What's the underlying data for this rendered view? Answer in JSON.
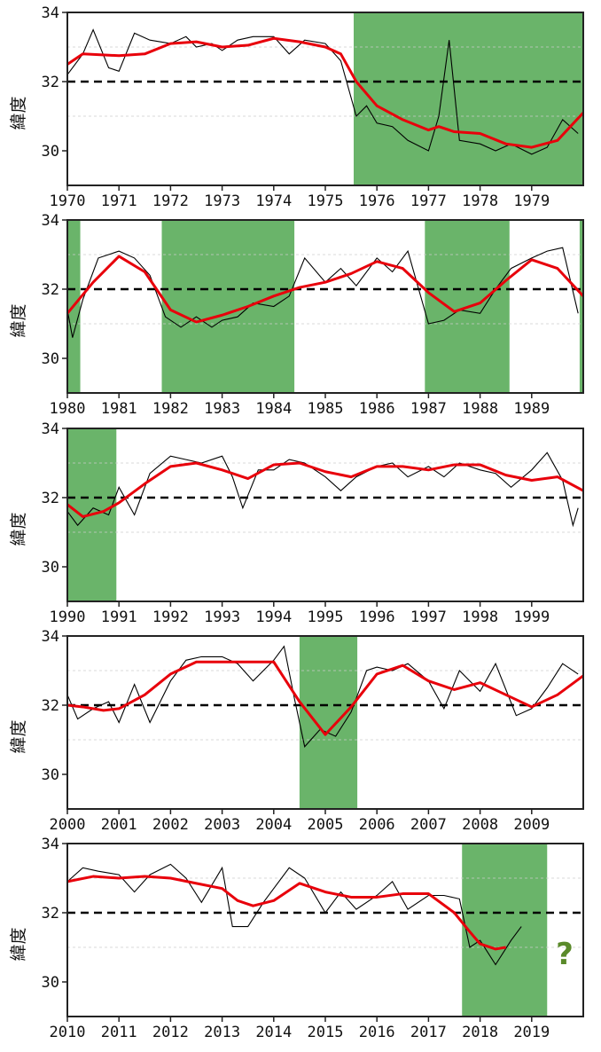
{
  "colors": {
    "shade": "#6ab46a",
    "smooth": "#e8000b",
    "raw": "#000000",
    "threshold": "#000000",
    "question": "#5a8a2a",
    "grid": "#cccccc"
  },
  "chart_data": [
    {
      "type": "line",
      "ylabel": "緯度",
      "ylim": [
        29,
        34
      ],
      "xlim": [
        1970,
        1980
      ],
      "yticks": [
        "34",
        "32",
        "30"
      ],
      "threshold": 32,
      "xtick_labels": [
        "1970",
        "1971",
        "1972",
        "1973",
        "1974",
        "1975",
        "1976",
        "1977",
        "1978",
        "1979"
      ],
      "shaded": [
        [
          1975.55,
          1980
        ]
      ],
      "smooth": {
        "x": [
          1970,
          1970.3,
          1971,
          1971.5,
          1972,
          1972.5,
          1973,
          1973.5,
          1974,
          1974.5,
          1975,
          1975.3,
          1975.6,
          1976,
          1976.5,
          1977,
          1977.2,
          1977.5,
          1978,
          1978.5,
          1979,
          1979.5,
          1980
        ],
        "y": [
          32.5,
          32.8,
          32.75,
          32.8,
          33.1,
          33.15,
          33.0,
          33.05,
          33.25,
          33.15,
          33.0,
          32.8,
          32.0,
          31.3,
          30.9,
          30.6,
          30.7,
          30.55,
          30.5,
          30.2,
          30.1,
          30.3,
          31.1
        ]
      },
      "raw": {
        "x": [
          1970,
          1970.3,
          1970.5,
          1970.8,
          1971,
          1971.3,
          1971.6,
          1972,
          1972.3,
          1972.5,
          1972.8,
          1973,
          1973.3,
          1973.6,
          1974,
          1974.3,
          1974.6,
          1975,
          1975.3,
          1975.6,
          1975.8,
          1976,
          1976.3,
          1976.6,
          1977,
          1977.2,
          1977.4,
          1977.6,
          1978,
          1978.3,
          1978.6,
          1979,
          1979.3,
          1979.6,
          1979.9
        ],
        "y": [
          32.2,
          32.8,
          33.5,
          32.4,
          32.3,
          33.4,
          33.2,
          33.1,
          33.3,
          33.0,
          33.1,
          32.9,
          33.2,
          33.3,
          33.3,
          32.8,
          33.2,
          33.1,
          32.6,
          31.0,
          31.3,
          30.8,
          30.7,
          30.3,
          30.0,
          31.0,
          33.2,
          30.3,
          30.2,
          30.0,
          30.2,
          29.9,
          30.1,
          30.9,
          30.5
        ]
      }
    },
    {
      "type": "line",
      "ylabel": "緯度",
      "ylim": [
        29,
        34
      ],
      "xlim": [
        1980,
        1990
      ],
      "yticks": [
        "34",
        "32",
        "30"
      ],
      "threshold": 32,
      "xtick_labels": [
        "1980",
        "1981",
        "1982",
        "1983",
        "1984",
        "1985",
        "1986",
        "1987",
        "1988",
        "1989"
      ],
      "shaded": [
        [
          1980,
          1980.25
        ],
        [
          1981.83,
          1984.4
        ],
        [
          1986.93,
          1988.57
        ],
        [
          1989.93,
          1990
        ]
      ],
      "smooth": {
        "x": [
          1980,
          1980.5,
          1981,
          1981.5,
          1982,
          1982.5,
          1983,
          1983.5,
          1984,
          1984.5,
          1985,
          1985.5,
          1986,
          1986.5,
          1987,
          1987.5,
          1988,
          1988.5,
          1989,
          1989.5,
          1990
        ],
        "y": [
          31.3,
          32.2,
          32.95,
          32.5,
          31.4,
          31.05,
          31.25,
          31.5,
          31.8,
          32.05,
          32.2,
          32.45,
          32.8,
          32.6,
          31.9,
          31.35,
          31.6,
          32.25,
          32.85,
          32.6,
          31.8
        ]
      },
      "raw": {
        "x": [
          1980,
          1980.1,
          1980.3,
          1980.6,
          1981,
          1981.3,
          1981.6,
          1981.9,
          1982.2,
          1982.5,
          1982.8,
          1983,
          1983.3,
          1983.6,
          1984,
          1984.3,
          1984.6,
          1985,
          1985.3,
          1985.6,
          1986,
          1986.3,
          1986.6,
          1987,
          1987.3,
          1987.6,
          1988,
          1988.3,
          1988.6,
          1989,
          1989.3,
          1989.6,
          1989.9
        ],
        "y": [
          31.4,
          30.6,
          31.7,
          32.9,
          33.1,
          32.9,
          32.4,
          31.2,
          30.9,
          31.2,
          30.9,
          31.1,
          31.2,
          31.6,
          31.5,
          31.8,
          32.9,
          32.2,
          32.6,
          32.1,
          32.9,
          32.5,
          33.1,
          31.0,
          31.1,
          31.4,
          31.3,
          32.0,
          32.6,
          32.9,
          33.1,
          33.2,
          31.3
        ]
      }
    },
    {
      "type": "line",
      "ylabel": "緯度",
      "ylim": [
        29,
        34
      ],
      "xlim": [
        1990,
        2000
      ],
      "yticks": [
        "34",
        "32",
        "30"
      ],
      "threshold": 32,
      "xtick_labels": [
        "1990",
        "1991",
        "1992",
        "1993",
        "1994",
        "1995",
        "1996",
        "1997",
        "1998",
        "1999"
      ],
      "shaded": [
        [
          1990,
          1990.95
        ]
      ],
      "smooth": {
        "x": [
          1990,
          1990.3,
          1990.7,
          1991,
          1991.5,
          1992,
          1992.5,
          1993,
          1993.5,
          1994,
          1994.5,
          1995,
          1995.5,
          1996,
          1996.5,
          1997,
          1997.5,
          1998,
          1998.5,
          1999,
          1999.5,
          2000
        ],
        "y": [
          31.8,
          31.45,
          31.6,
          31.85,
          32.4,
          32.9,
          33.0,
          32.8,
          32.55,
          32.95,
          33.0,
          32.75,
          32.6,
          32.9,
          32.9,
          32.8,
          32.95,
          32.95,
          32.65,
          32.5,
          32.6,
          32.2
        ]
      },
      "raw": {
        "x": [
          1990,
          1990.2,
          1990.5,
          1990.8,
          1991,
          1991.3,
          1991.6,
          1992,
          1992.3,
          1992.6,
          1993,
          1993.2,
          1993.4,
          1993.7,
          1994,
          1994.3,
          1994.6,
          1995,
          1995.3,
          1995.6,
          1996,
          1996.3,
          1996.6,
          1997,
          1997.3,
          1997.6,
          1998,
          1998.3,
          1998.6,
          1999,
          1999.3,
          1999.6,
          1999.8,
          1999.9
        ],
        "y": [
          31.6,
          31.2,
          31.7,
          31.5,
          32.3,
          31.5,
          32.7,
          33.2,
          33.1,
          33.0,
          33.2,
          32.6,
          31.7,
          32.8,
          32.8,
          33.1,
          33.0,
          32.6,
          32.2,
          32.6,
          32.9,
          33.0,
          32.6,
          32.9,
          32.6,
          33.0,
          32.8,
          32.7,
          32.3,
          32.8,
          33.3,
          32.5,
          31.2,
          31.7
        ]
      }
    },
    {
      "type": "line",
      "ylabel": "緯度",
      "ylim": [
        29,
        34
      ],
      "xlim": [
        2000,
        2010
      ],
      "yticks": [
        "34",
        "32",
        "30"
      ],
      "threshold": 32,
      "xtick_labels": [
        "2000",
        "2001",
        "2002",
        "2003",
        "2004",
        "2005",
        "2006",
        "2007",
        "2008",
        "2009"
      ],
      "shaded": [
        [
          2004.5,
          2005.62
        ]
      ],
      "smooth": {
        "x": [
          2000,
          2000.3,
          2000.7,
          2001,
          2001.5,
          2002,
          2002.5,
          2003,
          2003.5,
          2004,
          2004.5,
          2005,
          2005.5,
          2006,
          2006.5,
          2007,
          2007.5,
          2008,
          2008.5,
          2009,
          2009.5,
          2010
        ],
        "y": [
          32.0,
          31.95,
          31.85,
          31.9,
          32.3,
          32.9,
          33.25,
          33.25,
          33.25,
          33.25,
          32.1,
          31.15,
          31.95,
          32.9,
          33.15,
          32.7,
          32.45,
          32.65,
          32.3,
          31.95,
          32.3,
          32.85
        ]
      },
      "raw": {
        "x": [
          2000,
          2000.2,
          2000.5,
          2000.8,
          2001,
          2001.3,
          2001.6,
          2002,
          2002.3,
          2002.6,
          2003,
          2003.3,
          2003.6,
          2004,
          2004.2,
          2004.4,
          2004.6,
          2004.9,
          2005.2,
          2005.5,
          2005.8,
          2006,
          2006.3,
          2006.6,
          2007,
          2007.3,
          2007.6,
          2008,
          2008.3,
          2008.7,
          2009,
          2009.3,
          2009.6,
          2009.9
        ],
        "y": [
          32.3,
          31.6,
          31.9,
          32.1,
          31.5,
          32.6,
          31.5,
          32.7,
          33.3,
          33.4,
          33.4,
          33.2,
          32.7,
          33.3,
          33.7,
          32.2,
          30.8,
          31.3,
          31.1,
          31.8,
          33.0,
          33.1,
          33.0,
          33.2,
          32.7,
          31.9,
          33.0,
          32.4,
          33.2,
          31.7,
          31.9,
          32.5,
          33.2,
          32.9
        ]
      }
    },
    {
      "type": "line",
      "ylabel": "緯度",
      "ylim": [
        29,
        34
      ],
      "xlim": [
        2010,
        2020
      ],
      "yticks": [
        "34",
        "32",
        "30"
      ],
      "threshold": 32,
      "xtick_labels": [
        "2010",
        "2011",
        "2012",
        "2013",
        "2014",
        "2015",
        "2016",
        "2017",
        "2018",
        "2019"
      ],
      "shaded": [
        [
          2017.65,
          2019.3
        ]
      ],
      "annotation": "?",
      "smooth": {
        "x": [
          2010,
          2010.5,
          2011,
          2011.5,
          2012,
          2012.5,
          2013,
          2013.3,
          2013.6,
          2014,
          2014.5,
          2015,
          2015.5,
          2016,
          2016.5,
          2017,
          2017.5,
          2017.8,
          2018,
          2018.3,
          2018.5
        ],
        "y": [
          32.9,
          33.05,
          33.0,
          33.05,
          33.0,
          32.85,
          32.7,
          32.35,
          32.2,
          32.35,
          32.85,
          32.6,
          32.45,
          32.45,
          32.55,
          32.55,
          32.0,
          31.45,
          31.1,
          30.95,
          31.0
        ]
      },
      "raw": {
        "x": [
          2010,
          2010.3,
          2010.6,
          2011,
          2011.3,
          2011.6,
          2012,
          2012.3,
          2012.6,
          2013,
          2013.2,
          2013.5,
          2013.8,
          2014,
          2014.3,
          2014.6,
          2015,
          2015.3,
          2015.6,
          2016,
          2016.3,
          2016.6,
          2017,
          2017.3,
          2017.6,
          2017.8,
          2018,
          2018.3,
          2018.6,
          2018.8
        ],
        "y": [
          32.9,
          33.3,
          33.2,
          33.1,
          32.6,
          33.1,
          33.4,
          33.0,
          32.3,
          33.3,
          31.6,
          31.6,
          32.3,
          32.7,
          33.3,
          33.0,
          32.0,
          32.6,
          32.1,
          32.5,
          32.9,
          32.1,
          32.5,
          32.5,
          32.4,
          31.0,
          31.2,
          30.5,
          31.2,
          31.6
        ]
      }
    }
  ]
}
